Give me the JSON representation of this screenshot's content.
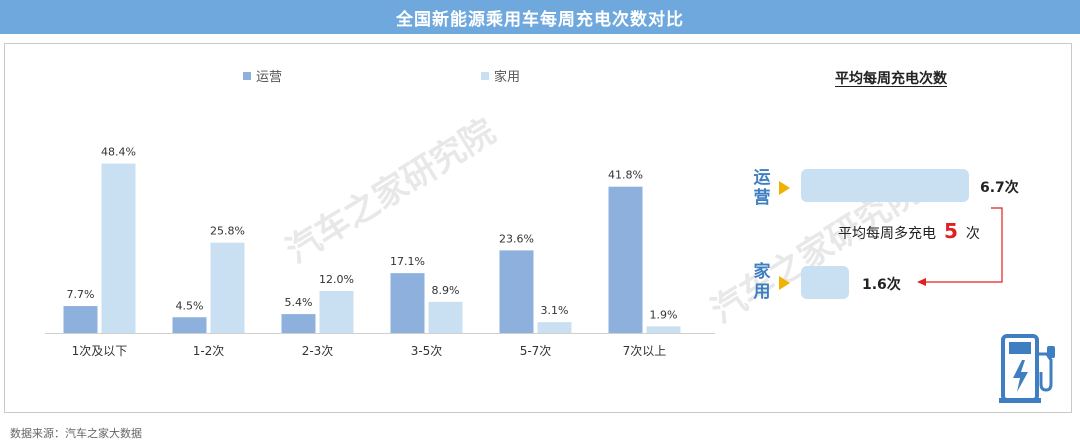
{
  "title": "全国新能源乘用车每周充电次数对比",
  "source": "数据来源：汽车之家大数据",
  "watermark": "汽车之家研究院",
  "colors": {
    "header": "#6fa8dc",
    "operation": "#8eb0dc",
    "home": "#c9dff2",
    "accent_arrow": "#f0b400",
    "highlight": "#e02020",
    "label_blue": "#3f7fc1"
  },
  "chart_data": {
    "type": "bar",
    "categories": [
      "1次及以下",
      "1-2次",
      "2-3次",
      "3-5次",
      "5-7次",
      "7次以上"
    ],
    "series": [
      {
        "name": "运营",
        "values": [
          7.7,
          4.5,
          5.4,
          17.1,
          23.6,
          41.8
        ],
        "labels": [
          "7.7%",
          "4.5%",
          "5.4%",
          "17.1%",
          "23.6%",
          "41.8%"
        ]
      },
      {
        "name": "家用",
        "values": [
          48.4,
          25.8,
          12.0,
          8.9,
          3.1,
          1.9
        ],
        "labels": [
          "48.4%",
          "25.8%",
          "12.0%",
          "8.9%",
          "3.1%",
          "1.9%"
        ]
      }
    ],
    "ylim": [
      0,
      50
    ],
    "legend": "top",
    "grid": false
  },
  "summary": {
    "title": "平均每周充电次数",
    "items": [
      {
        "label": "运营",
        "value": 6.7,
        "value_text": "6.7次"
      },
      {
        "label": "家用",
        "value": 1.6,
        "value_text": "1.6次"
      }
    ],
    "difference": {
      "prefix": "平均每周多充电",
      "number": "5",
      "suffix": "次"
    }
  },
  "icons": {
    "charger": "ev-charger-icon",
    "arrow": "triangle-right-icon"
  }
}
